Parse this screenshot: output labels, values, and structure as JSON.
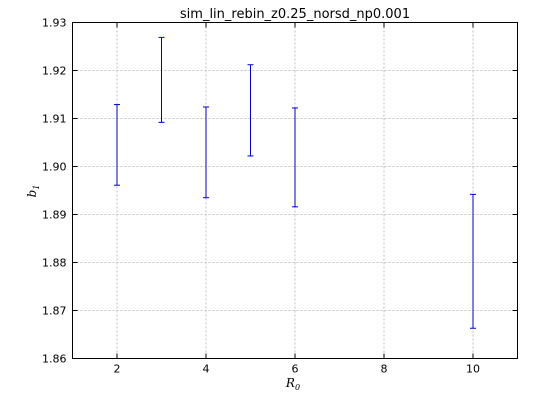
{
  "chart_data": {
    "type": "errorbar",
    "title": "sim_lin_rebin_z0.25_norsd_np0.001",
    "xlabel": "R",
    "xlabel_sub": "0",
    "ylabel": "b",
    "ylabel_sub": "1",
    "xlim": [
      1,
      11
    ],
    "ylim": [
      1.86,
      1.93
    ],
    "xticks": [
      2,
      4,
      6,
      8,
      10
    ],
    "yticks": [
      1.86,
      1.87,
      1.88,
      1.89,
      1.9,
      1.91,
      1.92,
      1.93
    ],
    "ytick_labels": [
      "1.86",
      "1.87",
      "1.88",
      "1.89",
      "1.90",
      "1.91",
      "1.92",
      "1.93"
    ],
    "grid": true,
    "errorbar_color": "#0000cc",
    "points": [
      {
        "x": 2,
        "low": 1.8961,
        "high": 1.9129
      },
      {
        "x": 3,
        "low": 1.9092,
        "high": 1.9269
      },
      {
        "x": 4,
        "low": 1.8935,
        "high": 1.9124
      },
      {
        "x": 5,
        "low": 1.9022,
        "high": 1.9212
      },
      {
        "x": 6,
        "low": 1.8916,
        "high": 1.9122
      },
      {
        "x": 10,
        "low": 1.8663,
        "high": 1.8942
      }
    ]
  }
}
